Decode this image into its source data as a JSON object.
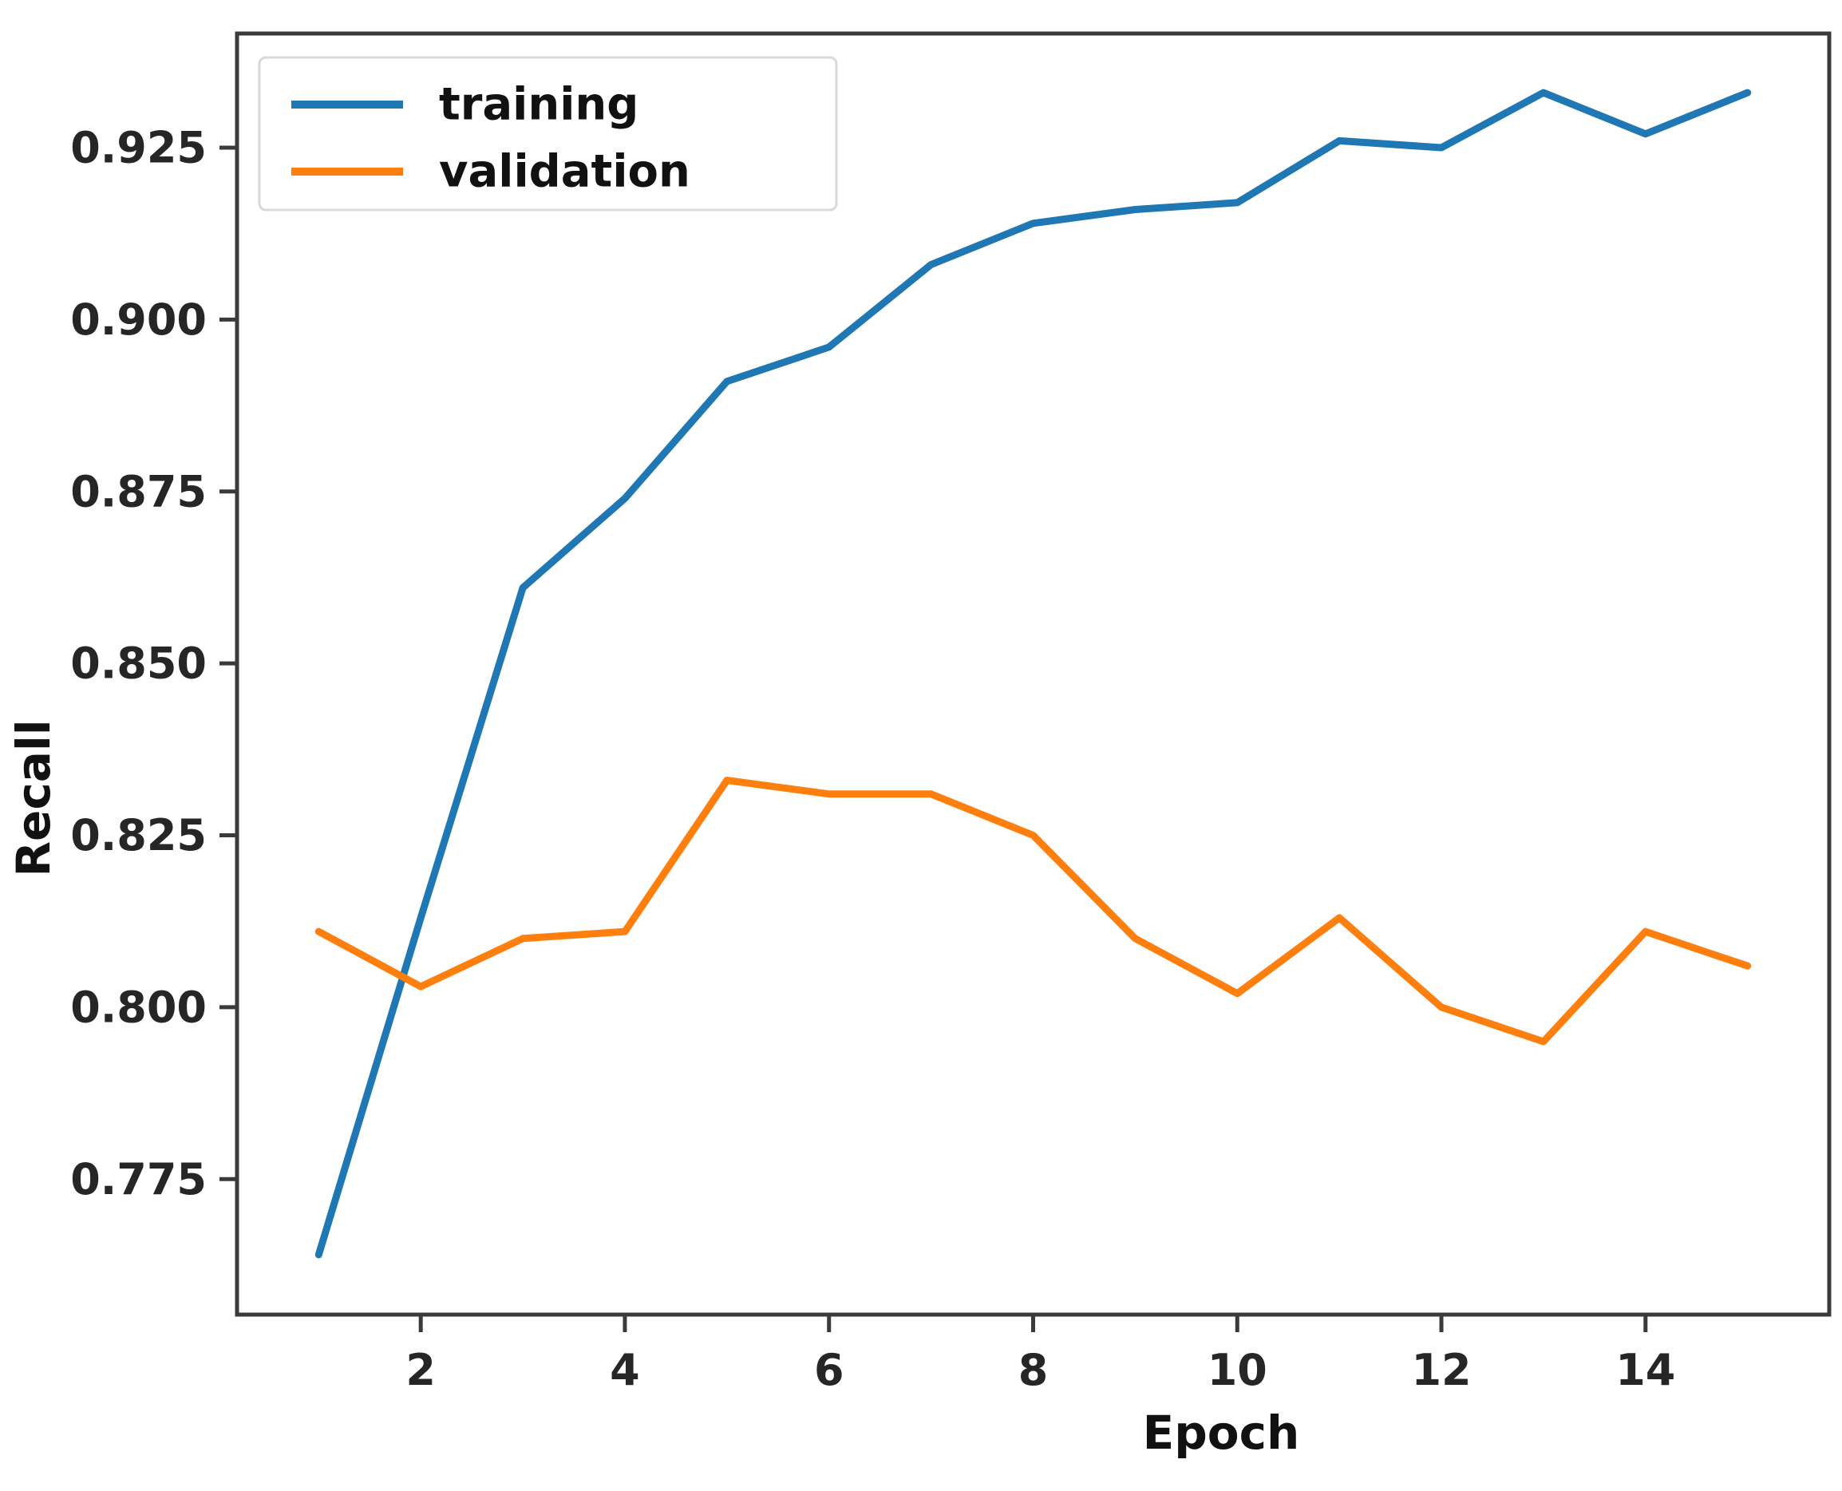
{
  "chart_data": {
    "type": "line",
    "title": "",
    "xlabel": "Epoch",
    "ylabel": "Recall",
    "x": [
      1,
      2,
      3,
      4,
      5,
      6,
      7,
      8,
      9,
      10,
      11,
      12,
      13,
      14,
      15
    ],
    "series": [
      {
        "name": "training",
        "color": "#1f77b4",
        "values": [
          0.764,
          0.813,
          0.861,
          0.874,
          0.891,
          0.896,
          0.908,
          0.914,
          0.916,
          0.917,
          0.926,
          0.925,
          0.933,
          0.927,
          0.933
        ]
      },
      {
        "name": "validation",
        "color": "#ff7f0e",
        "values": [
          0.811,
          0.803,
          0.81,
          0.811,
          0.833,
          0.831,
          0.831,
          0.825,
          0.81,
          0.802,
          0.813,
          0.8,
          0.795,
          0.811,
          0.806
        ]
      }
    ],
    "xticks": [
      2,
      4,
      6,
      8,
      10,
      12,
      14
    ],
    "xticklabels": [
      "2",
      "4",
      "6",
      "8",
      "10",
      "12",
      "14"
    ],
    "yticks": [
      0.775,
      0.8,
      0.825,
      0.85,
      0.875,
      0.9,
      0.925
    ],
    "yticklabels": [
      "0.775",
      "0.800",
      "0.825",
      "0.850",
      "0.875",
      "0.900",
      "0.925"
    ],
    "xlim": [
      0.2,
      15.8
    ],
    "ylim": [
      0.7553,
      0.9416
    ],
    "grid": false,
    "legend_position": "upper left",
    "legend_entries": [
      "training",
      "validation"
    ]
  },
  "colors": {
    "background": "#ffffff",
    "spine": "#3a3a3a",
    "tick": "#3a3a3a",
    "tick_text": "#262626",
    "legend_border": "#d9d9d9",
    "training": "#1f77b4",
    "validation": "#ff7f0e"
  }
}
